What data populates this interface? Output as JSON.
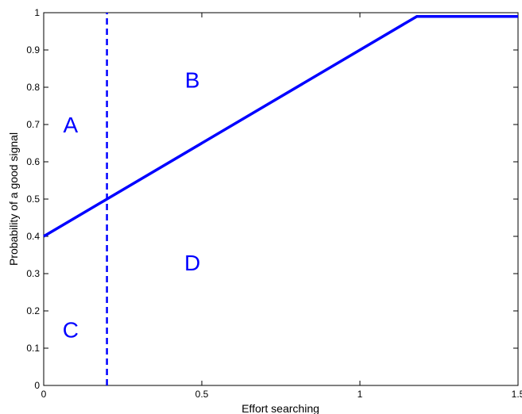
{
  "chart_data": {
    "type": "line",
    "xlabel": "Effort searching",
    "ylabel": "Probability of a good signal",
    "xlim": [
      0,
      1.5
    ],
    "ylim": [
      0,
      1
    ],
    "x_ticks": [
      "0",
      "0.5",
      "1",
      "1.5"
    ],
    "y_ticks": [
      "0",
      "0.1",
      "0.2",
      "0.3",
      "0.4",
      "0.5",
      "0.6",
      "0.7",
      "0.8",
      "0.9",
      "1"
    ],
    "grid": false,
    "series": [
      {
        "style": "solid",
        "color": "#0000ff",
        "x": [
          0,
          1.18,
          1.5
        ],
        "y": [
          0.4,
          0.99,
          0.99
        ]
      },
      {
        "style": "dashed",
        "color": "#0000ff",
        "x": [
          0.2,
          0.2
        ],
        "y": [
          0,
          1
        ]
      }
    ],
    "annotations": [
      {
        "text": "A",
        "x": 0.085,
        "y": 0.7,
        "color": "#0000ff"
      },
      {
        "text": "B",
        "x": 0.47,
        "y": 0.82,
        "color": "#0000ff"
      },
      {
        "text": "C",
        "x": 0.085,
        "y": 0.15,
        "color": "#0000ff"
      },
      {
        "text": "D",
        "x": 0.47,
        "y": 0.33,
        "color": "#0000ff"
      }
    ]
  }
}
